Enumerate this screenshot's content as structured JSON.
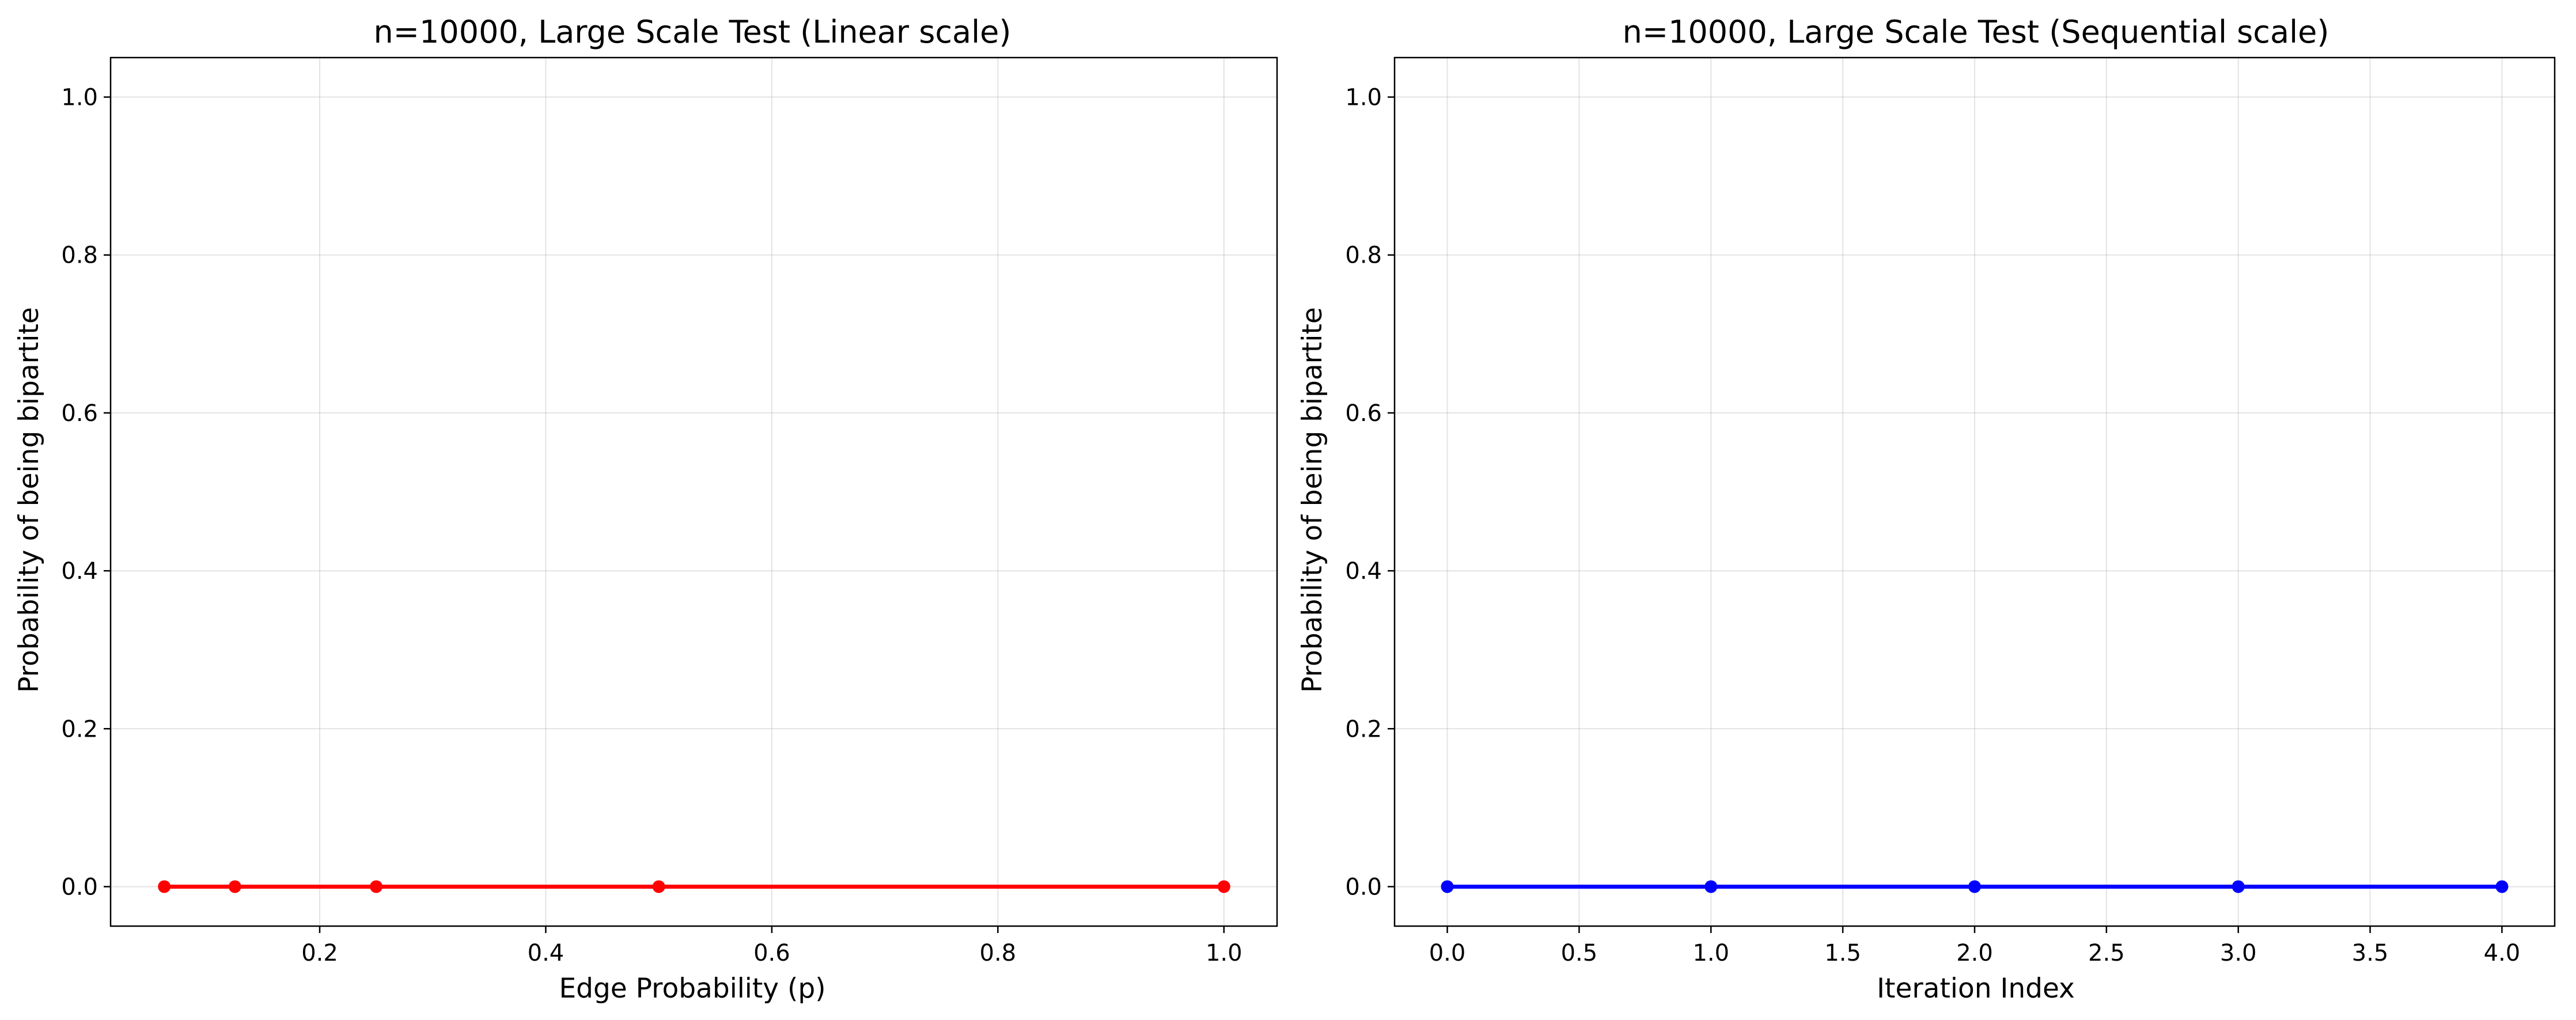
{
  "chart_data": [
    {
      "type": "line",
      "title": "n=10000, Large Scale Test (Linear scale)",
      "xlabel": "Edge Probability (p)",
      "ylabel": "Probability of being bipartite",
      "xlim": [
        0.015,
        1.047
      ],
      "ylim": [
        -0.05,
        1.05
      ],
      "xticks": [
        0.2,
        0.4,
        0.6,
        0.8,
        1.0
      ],
      "xtick_labels": [
        "0.2",
        "0.4",
        "0.6",
        "0.8",
        "1.0"
      ],
      "yticks": [
        0.0,
        0.2,
        0.4,
        0.6,
        0.8,
        1.0
      ],
      "ytick_labels": [
        "0.0",
        "0.2",
        "0.4",
        "0.6",
        "0.8",
        "1.0"
      ],
      "grid": true,
      "color": "#ff0000",
      "series": [
        {
          "x": [
            0.0625,
            0.125,
            0.25,
            0.5,
            1.0
          ],
          "y": [
            0.0,
            0.0,
            0.0,
            0.0,
            0.0
          ]
        }
      ]
    },
    {
      "type": "line",
      "title": "n=10000, Large Scale Test (Sequential scale)",
      "xlabel": "Iteration Index",
      "ylabel": "Probability of being bipartite",
      "xlim": [
        -0.2,
        4.2
      ],
      "ylim": [
        -0.05,
        1.05
      ],
      "xticks": [
        0.0,
        0.5,
        1.0,
        1.5,
        2.0,
        2.5,
        3.0,
        3.5,
        4.0
      ],
      "xtick_labels": [
        "0.0",
        "0.5",
        "1.0",
        "1.5",
        "2.0",
        "2.5",
        "3.0",
        "3.5",
        "4.0"
      ],
      "yticks": [
        0.0,
        0.2,
        0.4,
        0.6,
        0.8,
        1.0
      ],
      "ytick_labels": [
        "0.0",
        "0.2",
        "0.4",
        "0.6",
        "0.8",
        "1.0"
      ],
      "grid": true,
      "color": "#0000ff",
      "series": [
        {
          "x": [
            0,
            1,
            2,
            3,
            4
          ],
          "y": [
            0.0,
            0.0,
            0.0,
            0.0,
            0.0
          ]
        }
      ]
    }
  ]
}
